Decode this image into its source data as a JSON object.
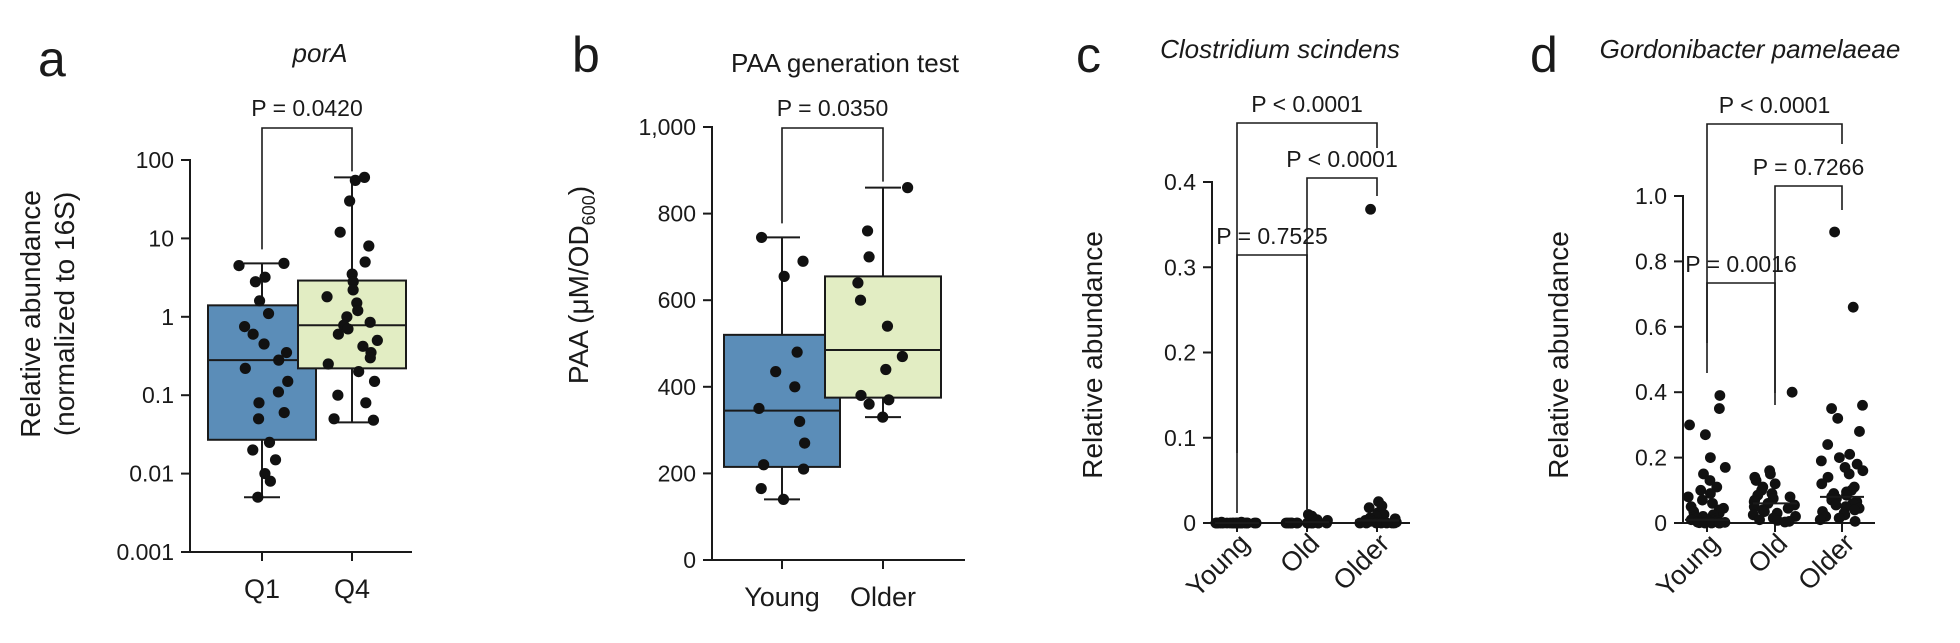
{
  "figure_colors": {
    "box_blue": "#5b8db8",
    "box_green": "#e2edc3",
    "points": "#111111"
  },
  "panel_letters": [
    "a",
    "b",
    "c",
    "d"
  ],
  "chart_data": [
    {
      "panel": "a",
      "type": "box",
      "title": "porA",
      "title_italic": true,
      "ylabel_lines": [
        "Relative abundance",
        "(normalized to 16S)"
      ],
      "yscale": "log",
      "ylim": [
        0.001,
        100
      ],
      "yticks": [
        0.001,
        0.01,
        0.1,
        1,
        10,
        100
      ],
      "ytick_labels": [
        "0.001",
        "0.01",
        "0.1",
        "1",
        "10",
        "100"
      ],
      "categories": [
        "Q1",
        "Q4"
      ],
      "boxes": [
        {
          "color": "#5b8db8",
          "min": 0.005,
          "q1": 0.027,
          "median": 0.28,
          "q3": 1.4,
          "max": 4.8,
          "points": [
            4.8,
            4.5,
            3.2,
            2.8,
            1.6,
            1.1,
            0.75,
            0.6,
            0.45,
            0.35,
            0.28,
            0.22,
            0.15,
            0.11,
            0.08,
            0.06,
            0.05,
            0.025,
            0.02,
            0.015,
            0.01,
            0.008,
            0.005
          ]
        },
        {
          "color": "#e2edc3",
          "min": 0.045,
          "q1": 0.22,
          "median": 0.78,
          "q3": 2.9,
          "max": 60,
          "points": [
            60,
            55,
            30,
            12,
            8,
            5,
            3.5,
            2.8,
            2.2,
            1.8,
            1.5,
            1.2,
            1.0,
            0.85,
            0.78,
            0.7,
            0.6,
            0.5,
            0.42,
            0.35,
            0.3,
            0.25,
            0.2,
            0.15,
            0.1,
            0.08,
            0.05,
            0.048
          ]
        }
      ],
      "comparisons": [
        {
          "from": 0,
          "to": 1,
          "label": "P = 0.0420"
        }
      ]
    },
    {
      "panel": "b",
      "type": "box",
      "title": "PAA generation test",
      "title_italic": false,
      "ylabel_main": "PAA (μM/OD",
      "ylabel_sub": "600",
      "ylabel_close": ")",
      "yscale": "linear",
      "ylim": [
        0,
        1000
      ],
      "yticks": [
        0,
        200,
        400,
        600,
        800,
        1000
      ],
      "ytick_labels": [
        "0",
        "200",
        "400",
        "600",
        "800",
        "1,000"
      ],
      "categories": [
        "Young",
        "Older"
      ],
      "boxes": [
        {
          "color": "#5b8db8",
          "min": 140,
          "q1": 215,
          "median": 345,
          "q3": 520,
          "max": 745,
          "points": [
            745,
            690,
            655,
            480,
            435,
            400,
            350,
            320,
            270,
            220,
            210,
            165,
            140
          ]
        },
        {
          "color": "#e2edc3",
          "min": 330,
          "q1": 375,
          "median": 485,
          "q3": 655,
          "max": 860,
          "points": [
            860,
            760,
            700,
            640,
            600,
            540,
            470,
            440,
            380,
            370,
            360,
            330
          ]
        }
      ],
      "comparisons": [
        {
          "from": 0,
          "to": 1,
          "label": "P = 0.0350"
        }
      ]
    },
    {
      "panel": "c",
      "type": "scatter_strip",
      "title": "Clostridium scindens",
      "title_italic": true,
      "ylabel": "Relative abundance",
      "yscale": "linear",
      "ylim": [
        0,
        0.4
      ],
      "yticks": [
        0,
        0.1,
        0.2,
        0.3,
        0.4
      ],
      "ytick_labels": [
        "0",
        "0.1",
        "0.2",
        "0.3",
        "0.4"
      ],
      "categories": [
        "Young",
        "Old",
        "Older"
      ],
      "groups": [
        {
          "points": [
            0,
            0,
            0,
            0,
            0,
            0,
            0,
            0,
            0,
            0,
            0,
            0,
            0,
            0,
            0,
            0,
            0,
            0,
            0,
            0,
            0,
            0,
            0.001,
            0.001
          ],
          "median": 0
        },
        {
          "points": [
            0,
            0,
            0,
            0,
            0,
            0,
            0,
            0,
            0,
            0,
            0,
            0,
            0,
            0,
            0,
            0,
            0.002,
            0.003,
            0.004,
            0.005,
            0.008,
            0.01
          ],
          "median": 0.001
        },
        {
          "points": [
            0.368,
            0.025,
            0.02,
            0.018,
            0.012,
            0.01,
            0.008,
            0.006,
            0.005,
            0.004,
            0.003,
            0.002,
            0.002,
            0.001,
            0.001,
            0,
            0,
            0,
            0,
            0,
            0,
            0
          ],
          "median": 0.003
        }
      ],
      "comparisons": [
        {
          "from": 0,
          "to": 2,
          "label": "P < 0.0001"
        },
        {
          "from": 1,
          "to": 2,
          "label": "P < 0.0001"
        },
        {
          "from": 0,
          "to": 1,
          "label": "P = 0.7525"
        }
      ]
    },
    {
      "panel": "d",
      "type": "scatter_strip",
      "title": "Gordonibacter pamelaeae",
      "title_italic": true,
      "ylabel": "Relative abundance",
      "yscale": "linear",
      "ylim": [
        0,
        1.0
      ],
      "yticks": [
        0,
        0.2,
        0.4,
        0.6,
        0.8,
        1.0
      ],
      "ytick_labels": [
        "0",
        "0.2",
        "0.4",
        "0.6",
        "0.8",
        "1.0"
      ],
      "categories": [
        "Young",
        "Old",
        "Older"
      ],
      "groups": [
        {
          "points": [
            0.39,
            0.35,
            0.3,
            0.27,
            0.2,
            0.17,
            0.15,
            0.13,
            0.11,
            0.1,
            0.09,
            0.08,
            0.07,
            0.06,
            0.05,
            0.045,
            0.04,
            0.035,
            0.03,
            0.025,
            0.02,
            0.018,
            0.015,
            0.012,
            0.01,
            0.008,
            0.006,
            0.005,
            0.003,
            0.002,
            0.001,
            0,
            0,
            0,
            0
          ],
          "median": 0.01
        },
        {
          "points": [
            0.4,
            0.16,
            0.15,
            0.14,
            0.13,
            0.12,
            0.11,
            0.1,
            0.09,
            0.085,
            0.08,
            0.075,
            0.07,
            0.065,
            0.06,
            0.055,
            0.05,
            0.045,
            0.04,
            0.035,
            0.03,
            0.025,
            0.02,
            0.015,
            0.01,
            0.008,
            0.005,
            0.003
          ],
          "median": 0.06
        },
        {
          "points": [
            0.89,
            0.66,
            0.36,
            0.35,
            0.32,
            0.28,
            0.24,
            0.21,
            0.2,
            0.19,
            0.18,
            0.17,
            0.16,
            0.15,
            0.14,
            0.12,
            0.11,
            0.1,
            0.095,
            0.09,
            0.085,
            0.08,
            0.075,
            0.07,
            0.065,
            0.06,
            0.055,
            0.05,
            0.045,
            0.04,
            0.035,
            0.03,
            0.025,
            0.02,
            0.015,
            0.01,
            0.005
          ],
          "median": 0.08
        }
      ],
      "comparisons": [
        {
          "from": 0,
          "to": 2,
          "label": "P < 0.0001"
        },
        {
          "from": 1,
          "to": 2,
          "label": "P = 0.7266"
        },
        {
          "from": 0,
          "to": 1,
          "label": "P = 0.0016"
        }
      ]
    }
  ]
}
